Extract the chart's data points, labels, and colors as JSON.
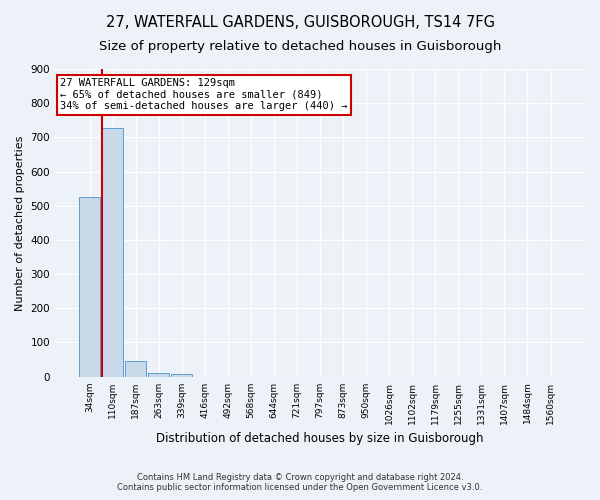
{
  "title": "27, WATERFALL GARDENS, GUISBOROUGH, TS14 7FG",
  "subtitle": "Size of property relative to detached houses in Guisborough",
  "xlabel": "Distribution of detached houses by size in Guisborough",
  "ylabel": "Number of detached properties",
  "footnote1": "Contains HM Land Registry data © Crown copyright and database right 2024.",
  "footnote2": "Contains public sector information licensed under the Open Government Licence v3.0.",
  "bin_labels": [
    "34sqm",
    "110sqm",
    "187sqm",
    "263sqm",
    "339sqm",
    "416sqm",
    "492sqm",
    "568sqm",
    "644sqm",
    "721sqm",
    "797sqm",
    "873sqm",
    "950sqm",
    "1026sqm",
    "1102sqm",
    "1179sqm",
    "1255sqm",
    "1331sqm",
    "1407sqm",
    "1484sqm",
    "1560sqm"
  ],
  "bar_heights": [
    527,
    727,
    47,
    11,
    8,
    0,
    0,
    0,
    0,
    0,
    0,
    0,
    0,
    0,
    0,
    0,
    0,
    0,
    0,
    0,
    0
  ],
  "bar_color": "#c9d9ea",
  "bar_edge_color": "#5a9fd4",
  "bar_edge_width": 0.7,
  "subject_line_color": "#cc0000",
  "ylim": [
    0,
    900
  ],
  "yticks": [
    0,
    100,
    200,
    300,
    400,
    500,
    600,
    700,
    800,
    900
  ],
  "annotation_line1": "27 WATERFALL GARDENS: 129sqm",
  "annotation_line2": "← 65% of detached houses are smaller (849)",
  "annotation_line3": "34% of semi-detached houses are larger (440) →",
  "annotation_box_color": "#cc0000",
  "background_color": "#edf2f8",
  "grid_color": "#ffffff",
  "title_fontsize": 10.5,
  "subtitle_fontsize": 9.5,
  "ylabel_fontsize": 8,
  "xlabel_fontsize": 8.5,
  "tick_fontsize": 6.5,
  "annot_fontsize": 7.5
}
